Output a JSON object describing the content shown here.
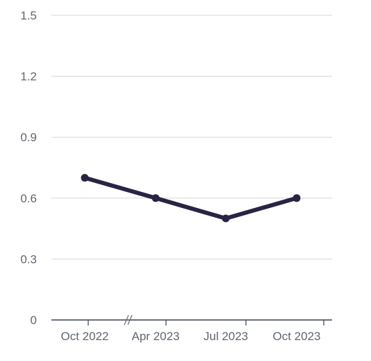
{
  "chart_data": {
    "type": "line",
    "title": "",
    "xlabel": "",
    "ylabel": "",
    "x_labels": [
      "Oct 2022",
      "Apr 2023",
      "Jul 2023",
      "Oct 2023"
    ],
    "y_ticks": [
      "0",
      "0.3",
      "0.6",
      "0.9",
      "1.2",
      "1.5"
    ],
    "ylim": [
      0,
      1.5
    ],
    "grid": true,
    "x_axis_break": true,
    "series": [
      {
        "color": "#2b2344",
        "points": [
          {
            "x": "Oct 2022",
            "y": 0.7
          },
          {
            "x": "Apr 2023",
            "y": 0.6
          },
          {
            "x": "Jul 2023",
            "y": 0.5
          },
          {
            "x": "Oct 2023",
            "y": 0.6
          }
        ]
      }
    ]
  }
}
